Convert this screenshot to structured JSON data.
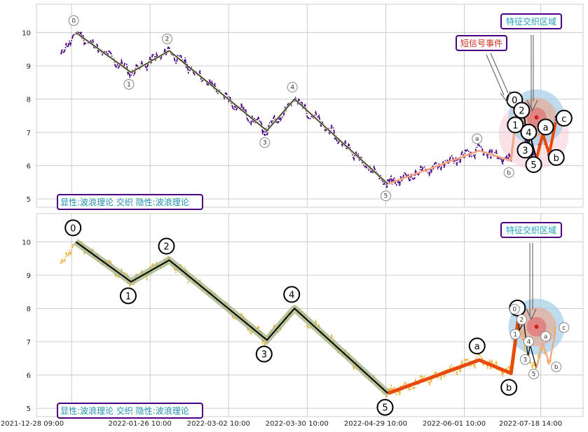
{
  "chart_data": [
    {
      "type": "line",
      "panel": "top",
      "ylim": [
        4.75,
        10.85
      ],
      "yticks": [
        5,
        6,
        7,
        8,
        9,
        10
      ],
      "grid": true,
      "x_ticks": [
        "2021-12-28 09:00",
        "2022-01-26 10:00",
        "2022-03-02 10:00",
        "2022-03-30 10:00",
        "2022-04-29 10:00",
        "2022-06-01 10:00",
        "2022-07-18 14:00"
      ],
      "price_color": "#4b0082",
      "major_wave": {
        "labels": [
          "0",
          "1",
          "2",
          "3",
          "4",
          "5"
        ],
        "x": [
          7,
          33,
          51,
          97,
          110,
          154
        ],
        "values": [
          10.0,
          8.8,
          9.45,
          7.05,
          8.0,
          5.45
        ],
        "color": "#000000"
      },
      "correction_wave": {
        "labels": [
          "a",
          "b"
        ],
        "x": [
          197,
          212
        ],
        "values": [
          6.45,
          6.15
        ],
        "color": "#f4a582"
      },
      "short_wave": {
        "labels": [
          "0",
          "1",
          "2",
          "3",
          "4",
          "5",
          "a",
          "b",
          "c"
        ],
        "x": [
          215,
          216,
          218,
          220,
          221,
          224,
          227,
          230,
          233
        ],
        "values": [
          7.85,
          7.35,
          7.6,
          6.55,
          6.9,
          6.2,
          6.95,
          6.35,
          7.3
        ],
        "color": "#000000",
        "bold_color": "#e84a0c"
      },
      "zone_center": {
        "x": 224,
        "y": 7.45
      },
      "annotations": [
        {
          "text": "特征交织区域",
          "color": "#1f9fbf",
          "border": "#4b0082"
        },
        {
          "text": "短信号事件",
          "color": "#d03020",
          "border": "#4b0082"
        }
      ],
      "info_box": "显性:波浪理论 交织 隐性:波浪理论"
    },
    {
      "type": "line",
      "panel": "bottom",
      "ylim": [
        4.75,
        10.85
      ],
      "yticks": [
        5,
        6,
        7,
        8,
        9,
        10
      ],
      "grid": true,
      "price_color": "#f0b030",
      "major_wave": {
        "labels": [
          "0",
          "1",
          "2",
          "3",
          "4",
          "5"
        ],
        "x": [
          7,
          33,
          51,
          97,
          110,
          154
        ],
        "values": [
          10.0,
          8.8,
          9.45,
          7.05,
          8.0,
          5.45
        ],
        "color": "#000000",
        "band_color": "#a8b88a"
      },
      "correction_wave": {
        "labels": [
          "a",
          "b",
          "c"
        ],
        "x": [
          197,
          212,
          216
        ],
        "values": [
          6.45,
          6.05,
          7.95
        ],
        "color": "#e84a0c"
      },
      "short_wave": {
        "labels": [
          "0",
          "1",
          "2",
          "3",
          "4",
          "5",
          "a",
          "b",
          "c"
        ],
        "x": [
          215,
          216,
          218,
          220,
          221,
          224,
          227,
          230,
          233
        ],
        "values": [
          7.85,
          7.35,
          7.6,
          6.55,
          6.9,
          6.2,
          6.95,
          6.35,
          7.3
        ],
        "color": "#000000",
        "bold_color": "#f4a582"
      },
      "zone_center": {
        "x": 224,
        "y": 7.45
      },
      "annotations": [
        {
          "text": "特征交织区域",
          "color": "#1f9fbf",
          "border": "#4b0082"
        }
      ],
      "info_box": "显性:波浪理论 交织 隐性:波浪理论"
    }
  ]
}
